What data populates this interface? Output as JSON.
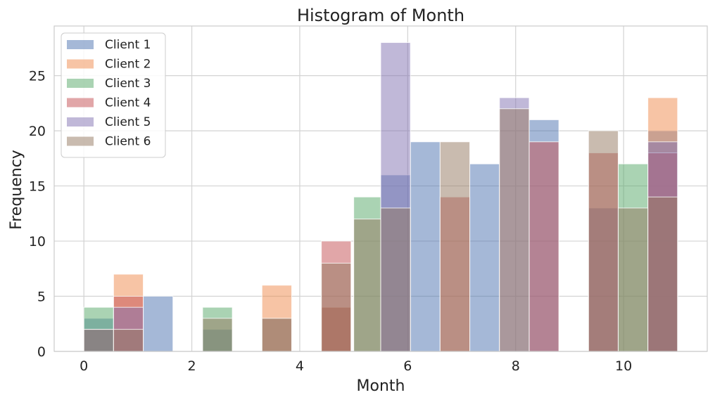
{
  "chart_data": {
    "type": "bar",
    "title": "Histogram of Month",
    "xlabel": "Month",
    "ylabel": "Frequency",
    "xlim": [
      -0.55,
      11.55
    ],
    "ylim": [
      0,
      29.5
    ],
    "xticks": [
      0,
      2,
      4,
      6,
      8,
      10
    ],
    "yticks": [
      0,
      5,
      10,
      15,
      20,
      25
    ],
    "grid": true,
    "legend_position": "top-left",
    "series": [
      {
        "name": "Client 1",
        "color": "#4c72b0",
        "bins": [
          {
            "x0": 0.0,
            "x1": 0.55,
            "value": 3
          },
          {
            "x0": 1.1,
            "x1": 1.65,
            "value": 5
          },
          {
            "x0": 2.2,
            "x1": 2.75,
            "value": 2
          },
          {
            "x0": 3.3,
            "x1": 3.85,
            "value": 3
          },
          {
            "x0": 4.4,
            "x1": 4.95,
            "value": 4
          },
          {
            "x0": 5.5,
            "x1": 6.05,
            "value": 16
          },
          {
            "x0": 6.05,
            "x1": 6.6,
            "value": 19
          },
          {
            "x0": 7.15,
            "x1": 7.7,
            "value": 17
          },
          {
            "x0": 8.25,
            "x1": 8.8,
            "value": 21
          },
          {
            "x0": 9.35,
            "x1": 9.9,
            "value": 13
          },
          {
            "x0": 10.45,
            "x1": 11.0,
            "value": 20
          }
        ]
      },
      {
        "name": "Client 2",
        "color": "#f08a4b",
        "bins": [
          {
            "x0": 0.55,
            "x1": 1.1,
            "value": 7
          },
          {
            "x0": 3.3,
            "x1": 3.85,
            "value": 6
          },
          {
            "x0": 4.4,
            "x1": 4.95,
            "value": 4
          },
          {
            "x0": 10.45,
            "x1": 11.0,
            "value": 23
          }
        ]
      },
      {
        "name": "Client 3",
        "color": "#55a868",
        "bins": [
          {
            "x0": 0.0,
            "x1": 0.55,
            "value": 4
          },
          {
            "x0": 2.2,
            "x1": 2.75,
            "value": 4
          },
          {
            "x0": 5.0,
            "x1": 5.5,
            "value": 14
          },
          {
            "x0": 9.9,
            "x1": 10.45,
            "value": 17
          }
        ]
      },
      {
        "name": "Client 4",
        "color": "#c44e52",
        "bins": [
          {
            "x0": 0.55,
            "x1": 1.1,
            "value": 5
          },
          {
            "x0": 4.4,
            "x1": 4.95,
            "value": 10
          },
          {
            "x0": 6.6,
            "x1": 7.15,
            "value": 14
          },
          {
            "x0": 8.25,
            "x1": 8.8,
            "value": 19
          },
          {
            "x0": 9.35,
            "x1": 9.9,
            "value": 18
          },
          {
            "x0": 10.45,
            "x1": 11.0,
            "value": 18
          }
        ]
      },
      {
        "name": "Client 5",
        "color": "#8172b2",
        "bins": [
          {
            "x0": 0.0,
            "x1": 0.55,
            "value": 2
          },
          {
            "x0": 0.55,
            "x1": 1.1,
            "value": 4
          },
          {
            "x0": 5.5,
            "x1": 6.05,
            "value": 28
          },
          {
            "x0": 7.7,
            "x1": 8.25,
            "value": 23
          },
          {
            "x0": 10.45,
            "x1": 11.0,
            "value": 19
          }
        ]
      },
      {
        "name": "Client 6",
        "color": "#937860",
        "bins": [
          {
            "x0": 0.0,
            "x1": 0.55,
            "value": 2
          },
          {
            "x0": 0.55,
            "x1": 1.1,
            "value": 2
          },
          {
            "x0": 2.2,
            "x1": 2.75,
            "value": 3
          },
          {
            "x0": 3.3,
            "x1": 3.85,
            "value": 3
          },
          {
            "x0": 4.4,
            "x1": 4.95,
            "value": 8
          },
          {
            "x0": 5.0,
            "x1": 5.5,
            "value": 12
          },
          {
            "x0": 5.5,
            "x1": 6.05,
            "value": 13
          },
          {
            "x0": 6.6,
            "x1": 7.15,
            "value": 19
          },
          {
            "x0": 7.7,
            "x1": 8.25,
            "value": 22
          },
          {
            "x0": 9.35,
            "x1": 9.9,
            "value": 20
          },
          {
            "x0": 9.9,
            "x1": 10.45,
            "value": 13
          },
          {
            "x0": 10.45,
            "x1": 11.0,
            "value": 14
          }
        ]
      }
    ]
  }
}
